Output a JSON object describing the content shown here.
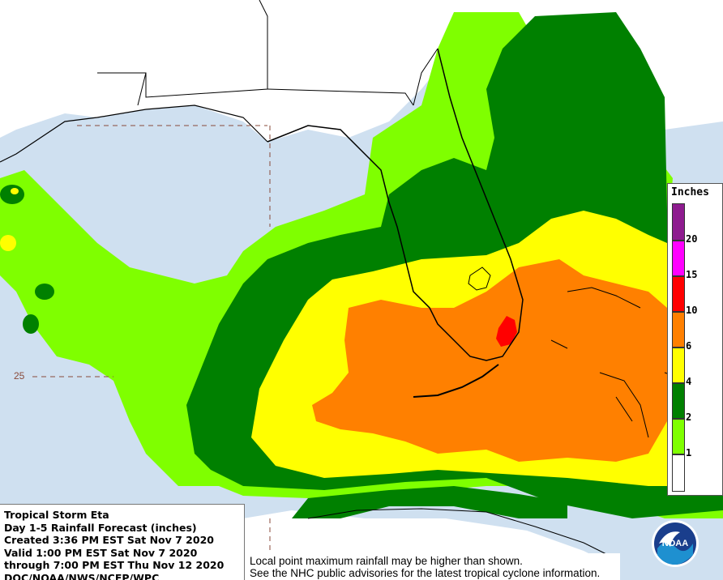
{
  "product": {
    "title": "Tropical Storm Eta",
    "subtitle": "Day 1-5 Rainfall Forecast (inches)",
    "created": "Created 3:36 PM EST Sat Nov 7 2020",
    "valid": "Valid 1:00 PM EST Sat Nov 7 2020",
    "through": "through 7:00 PM EST Thu Nov 12 2020",
    "agency": "DOC/NOAA/NWS/NCEP/WPC"
  },
  "disclaimer": {
    "line1": "Local point maximum rainfall may be higher than shown.",
    "line2": "See the NHC public advisories for the latest tropical cyclone information."
  },
  "legend": {
    "title": "Inches",
    "ticks": [
      "20",
      "15",
      "10",
      "6",
      "4",
      "2",
      "1"
    ],
    "bands": [
      {
        "range": "20+",
        "color": "#8e1b8f"
      },
      {
        "range": "15-20",
        "color": "#ff00ff"
      },
      {
        "range": "10-15",
        "color": "#ff0000"
      },
      {
        "range": "6-10",
        "color": "#ff8000"
      },
      {
        "range": "4-6",
        "color": "#ffff00"
      },
      {
        "range": "2-4",
        "color": "#008000"
      },
      {
        "range": "1-2",
        "color": "#7fff00"
      },
      {
        "range": "0-1",
        "color": "#ffffff"
      }
    ]
  },
  "map": {
    "latitude_label": "25",
    "colors": {
      "ocean": "#cfe0f0",
      "land": "#ffffff",
      "green_light": "#7fff00",
      "green_dark": "#008000",
      "yellow": "#ffff00",
      "orange": "#ff8000",
      "red": "#ff0000",
      "coastline": "#000000",
      "grid": "#8a4a3a"
    }
  },
  "logo": {
    "text": "NOAA"
  }
}
